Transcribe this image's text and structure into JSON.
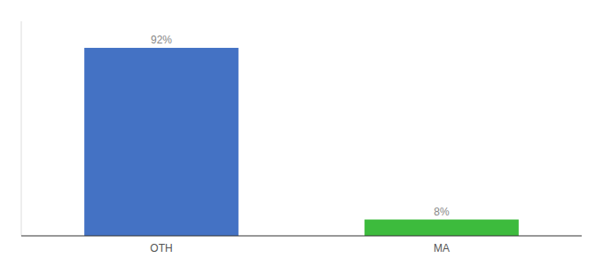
{
  "chart_data": {
    "type": "bar",
    "categories": [
      "OTH",
      "MA"
    ],
    "values": [
      92,
      8
    ],
    "value_labels": [
      "92%",
      "8%"
    ],
    "colors": [
      "#4472c4",
      "#3dbb3d"
    ],
    "ylim": [
      0,
      105
    ],
    "data_labels": true,
    "tick_labels": "x"
  }
}
